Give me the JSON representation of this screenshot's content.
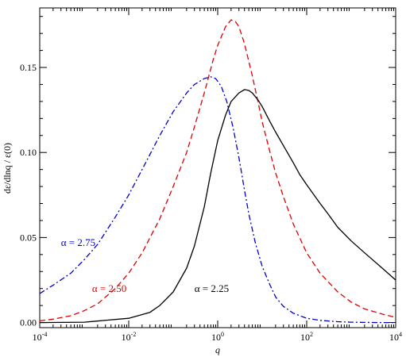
{
  "chart_data": {
    "type": "line",
    "title": "",
    "xlabel": "q",
    "ylabel": "dε/dlnq / ε(0)",
    "x_scale": "log",
    "xlim": [
      0.0001,
      10000
    ],
    "ylim": [
      -0.003,
      0.185
    ],
    "grid": false,
    "x_ticks": [
      {
        "value": 0.0001,
        "base": "10",
        "exp": "-4"
      },
      {
        "value": 0.01,
        "base": "10",
        "exp": "-2"
      },
      {
        "value": 1,
        "base": "10",
        "exp": "0"
      },
      {
        "value": 100,
        "base": "10",
        "exp": "2"
      },
      {
        "value": 10000,
        "base": "10",
        "exp": "4"
      }
    ],
    "y_ticks": [
      {
        "value": 0.0,
        "label": "0.00"
      },
      {
        "value": 0.05,
        "label": "0.05"
      },
      {
        "value": 0.1,
        "label": "0.10"
      },
      {
        "value": 0.15,
        "label": "0.15"
      }
    ],
    "series": [
      {
        "name": "α = 2.75",
        "color": "#0000cc",
        "dash": "dash-dot",
        "label_text": "α = 2.75",
        "label_at": [
          0.0003,
          0.045
        ],
        "x": [
          0.0001,
          0.0002,
          0.0005,
          0.001,
          0.002,
          0.005,
          0.01,
          0.02,
          0.05,
          0.1,
          0.2,
          0.3,
          0.5,
          0.7,
          0.9,
          1.2,
          1.6,
          2.2,
          3,
          4,
          5,
          7,
          10,
          15,
          20,
          30,
          50,
          100,
          200,
          500,
          1000,
          2000,
          5000,
          10000
        ],
        "y": [
          0.017,
          0.022,
          0.029,
          0.037,
          0.046,
          0.062,
          0.075,
          0.09,
          0.11,
          0.124,
          0.135,
          0.14,
          0.1435,
          0.1445,
          0.1435,
          0.139,
          0.13,
          0.115,
          0.097,
          0.078,
          0.064,
          0.047,
          0.033,
          0.022,
          0.015,
          0.0095,
          0.0055,
          0.0025,
          0.0013,
          0.0005,
          0.0002,
          0.0001,
          0.0,
          0.0
        ]
      },
      {
        "name": "α = 2.50",
        "color": "#dd0000",
        "dash": "dashed",
        "label_text": "α = 2.50",
        "label_at": [
          0.0015,
          0.018
        ],
        "x": [
          0.0001,
          0.0002,
          0.0005,
          0.001,
          0.002,
          0.005,
          0.01,
          0.02,
          0.05,
          0.1,
          0.2,
          0.3,
          0.5,
          0.8,
          1,
          1.5,
          2,
          2.5,
          3,
          4,
          6,
          8,
          10,
          15,
          20,
          30,
          50,
          100,
          200,
          500,
          1000,
          2000,
          5000,
          10000
        ],
        "y": [
          0.001,
          0.002,
          0.004,
          0.007,
          0.011,
          0.02,
          0.029,
          0.041,
          0.061,
          0.08,
          0.1,
          0.115,
          0.135,
          0.155,
          0.163,
          0.174,
          0.178,
          0.177,
          0.174,
          0.164,
          0.145,
          0.13,
          0.118,
          0.1,
          0.088,
          0.074,
          0.058,
          0.041,
          0.029,
          0.018,
          0.012,
          0.008,
          0.005,
          0.003
        ]
      },
      {
        "name": "α = 2.25",
        "color": "#000000",
        "dash": "solid",
        "label_text": "α = 2.25",
        "label_at": [
          0.3,
          0.018
        ],
        "x": [
          0.0001,
          0.001,
          0.01,
          0.03,
          0.05,
          0.1,
          0.2,
          0.3,
          0.5,
          0.7,
          1,
          1.5,
          2,
          3,
          4,
          5,
          6,
          8,
          10,
          15,
          20,
          30,
          50,
          70,
          100,
          200,
          300,
          500,
          1000,
          2000,
          5000,
          10000
        ],
        "y": [
          0.0,
          0.0002,
          0.0025,
          0.006,
          0.01,
          0.018,
          0.032,
          0.045,
          0.068,
          0.088,
          0.107,
          0.122,
          0.13,
          0.135,
          0.137,
          0.1365,
          0.135,
          0.131,
          0.127,
          0.118,
          0.112,
          0.104,
          0.094,
          0.087,
          0.081,
          0.07,
          0.064,
          0.056,
          0.048,
          0.041,
          0.032,
          0.025
        ]
      }
    ]
  }
}
